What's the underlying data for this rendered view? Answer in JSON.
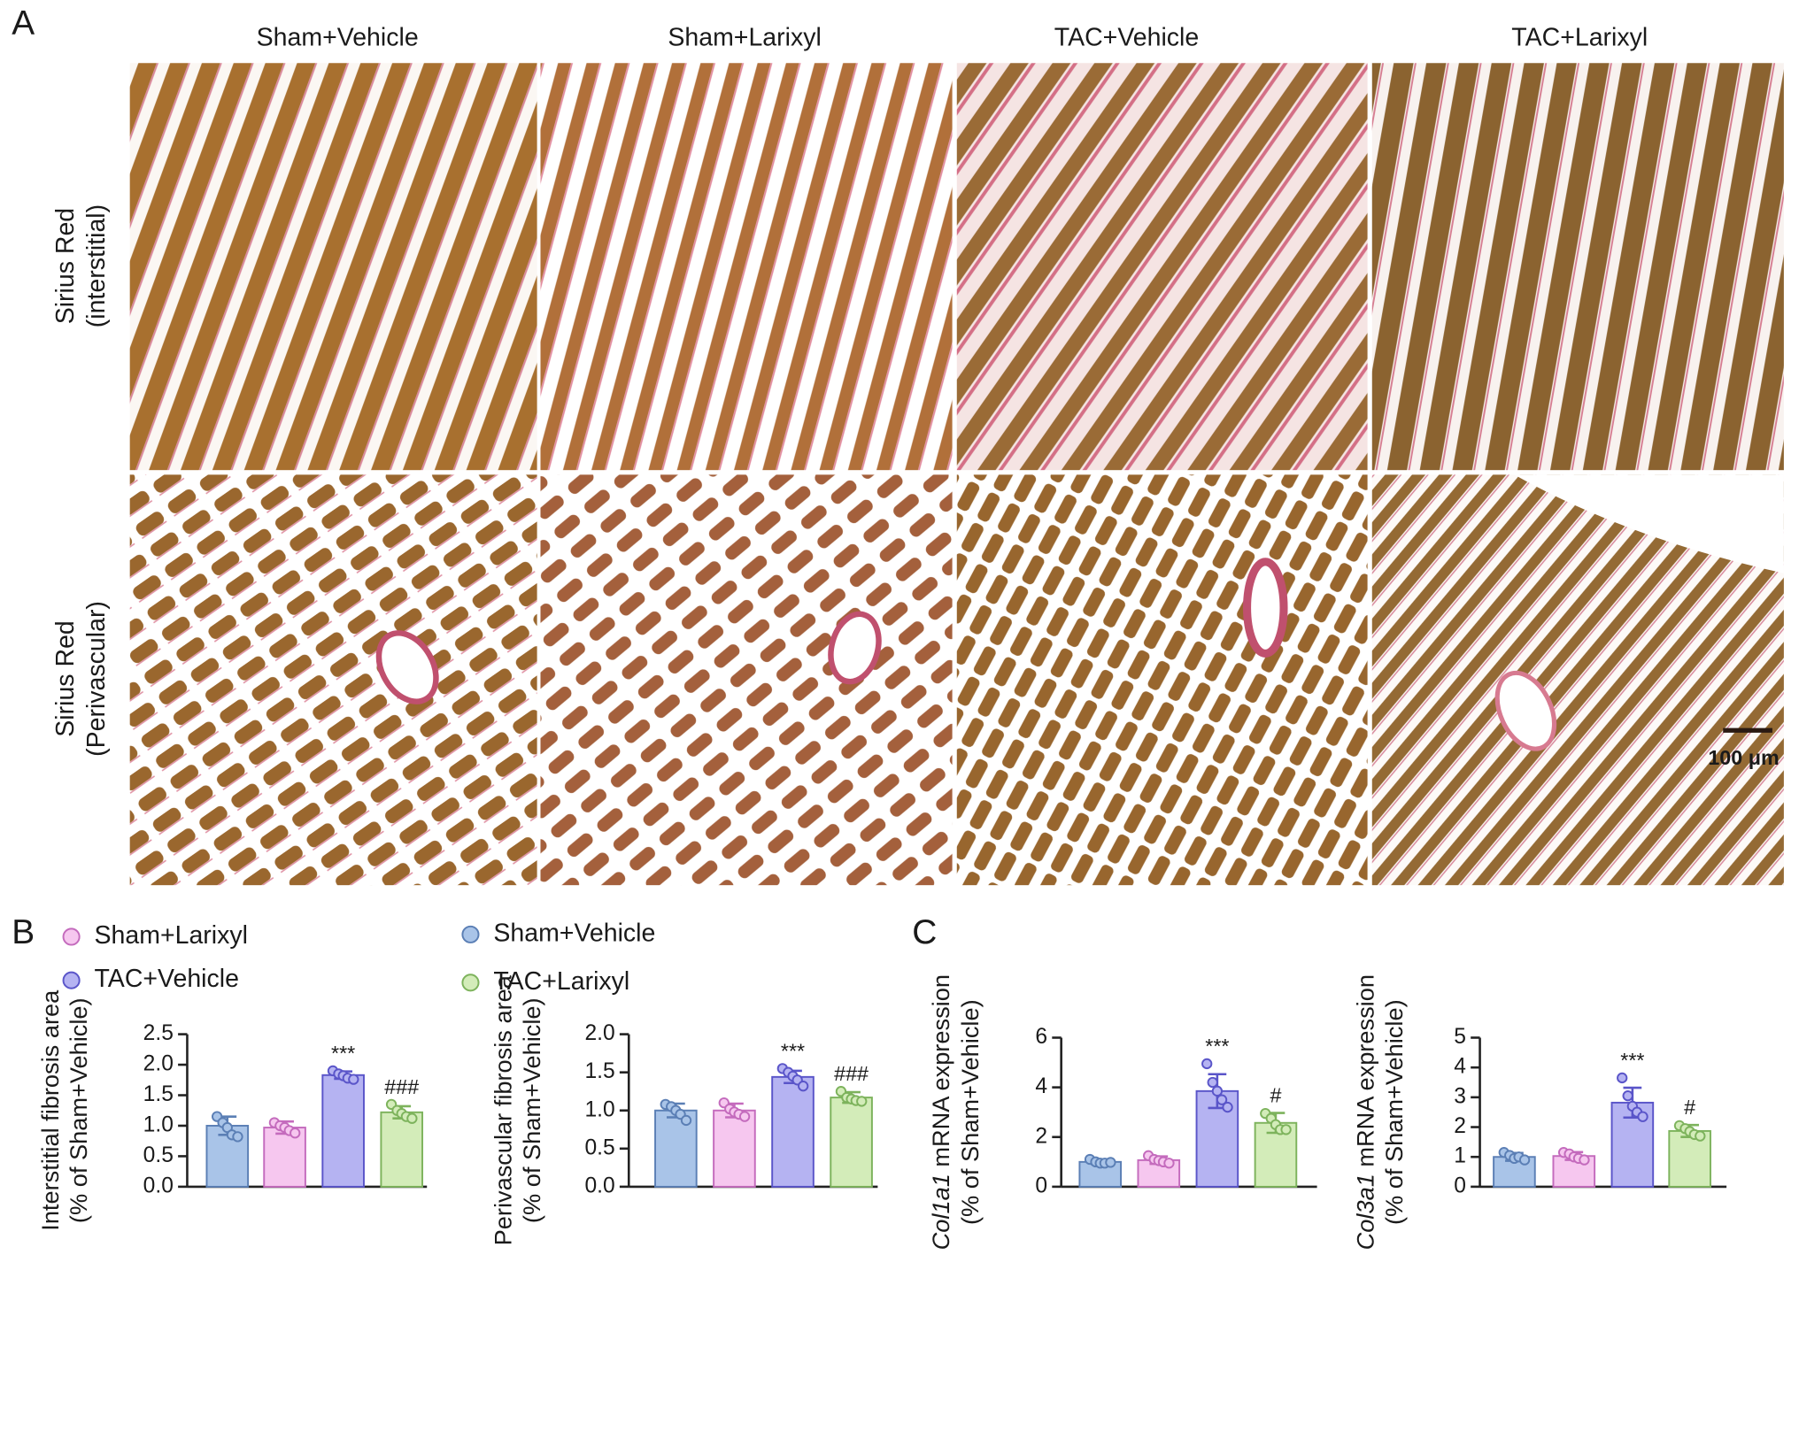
{
  "panel_labels": [
    "A",
    "B",
    "C"
  ],
  "panel_a": {
    "columns": [
      "Sham+Vehicle",
      "Sham+Larixyl",
      "TAC+Vehicle",
      "TAC+Larixyl"
    ],
    "rows": [
      [
        "Sirius Red",
        "(interstitial)"
      ],
      [
        "Sirius Red",
        "(Perivascular)"
      ]
    ],
    "scale_bar": "100 μm"
  },
  "groups": [
    {
      "name": "Sham+Vehicle",
      "color": "#a9c4e8",
      "edge": "#5b7fb5"
    },
    {
      "name": "Sham+Larixyl",
      "color": "#f6c7ef",
      "edge": "#c46bbd"
    },
    {
      "name": "TAC+Vehicle",
      "color": "#b5b3f2",
      "edge": "#5a55c9"
    },
    {
      "name": "TAC+Larixyl",
      "color": "#d3ecb9",
      "edge": "#7db35c"
    }
  ],
  "chart_data": [
    {
      "type": "bar",
      "ylabel": [
        "Interstitial fibrosis area",
        "(% of Sham+Vehicle)"
      ],
      "values": [
        1.0,
        0.97,
        1.83,
        1.22
      ],
      "errors": [
        0.15,
        0.1,
        0.06,
        0.1
      ],
      "points": [
        [
          1.15,
          1.05,
          0.97,
          0.85,
          0.82
        ],
        [
          1.05,
          1.0,
          0.97,
          0.92,
          0.88
        ],
        [
          1.9,
          1.85,
          1.82,
          1.78,
          1.76
        ],
        [
          1.35,
          1.25,
          1.2,
          1.15,
          1.12
        ]
      ],
      "annotations": [
        null,
        null,
        "***",
        "###"
      ],
      "ylim": [
        0,
        2.5
      ],
      "yticks": [
        {
          "value": 0,
          "label": "0.0"
        },
        0.5,
        {
          "value": 1,
          "label": "1.0"
        },
        1.5,
        {
          "value": 2,
          "label": "2.0"
        },
        2.5
      ]
    },
    {
      "type": "bar",
      "ylabel": [
        "Perivascular fibrosis area",
        "(% of Sham+Vehicle)"
      ],
      "values": [
        1.0,
        1.0,
        1.44,
        1.17
      ],
      "errors": [
        0.09,
        0.09,
        0.08,
        0.07
      ],
      "points": [
        [
          1.08,
          1.05,
          1.0,
          0.95,
          0.87
        ],
        [
          1.1,
          1.02,
          0.98,
          0.95,
          0.92
        ],
        [
          1.55,
          1.5,
          1.45,
          1.4,
          1.32
        ],
        [
          1.25,
          1.17,
          1.15,
          1.13,
          1.12
        ]
      ],
      "annotations": [
        null,
        null,
        "***",
        "###"
      ],
      "ylim": [
        0,
        2.0
      ],
      "yticks": [
        {
          "value": 0,
          "label": "0.0"
        },
        0.5,
        {
          "value": 1,
          "label": "1.0"
        },
        1.5,
        {
          "value": 2,
          "label": "2.0"
        }
      ]
    },
    {
      "type": "bar",
      "ylabel_gene": "Col1a1",
      "ylabel": [
        " mRNA expression",
        "(% of Sham+Vehicle)"
      ],
      "values": [
        1.0,
        1.07,
        3.85,
        2.57
      ],
      "errors": [
        0.1,
        0.15,
        0.68,
        0.4
      ],
      "points": [
        [
          1.1,
          1.0,
          0.95,
          0.95,
          0.98
        ],
        [
          1.25,
          1.1,
          1.05,
          1.0,
          0.95
        ],
        [
          4.95,
          4.2,
          3.85,
          3.5,
          3.2
        ],
        [
          2.95,
          2.75,
          2.5,
          2.3,
          2.3
        ]
      ],
      "annotations": [
        null,
        null,
        "***",
        "#"
      ],
      "ylim": [
        0,
        6
      ],
      "yticks": [
        0,
        2,
        4,
        6
      ]
    },
    {
      "type": "bar",
      "ylabel_gene": "Col3a1",
      "ylabel": [
        " mRNA expression",
        "(% of Sham+Vehicle)"
      ],
      "values": [
        1.0,
        1.03,
        2.82,
        1.87
      ],
      "errors": [
        0.13,
        0.13,
        0.5,
        0.2
      ],
      "points": [
        [
          1.15,
          1.05,
          0.95,
          1.0,
          0.9
        ],
        [
          1.15,
          1.1,
          1.0,
          0.95,
          0.9
        ],
        [
          3.65,
          3.05,
          2.7,
          2.5,
          2.35
        ],
        [
          2.05,
          1.95,
          1.85,
          1.75,
          1.7
        ]
      ],
      "annotations": [
        null,
        null,
        "***",
        "#"
      ],
      "ylim": [
        0,
        5
      ],
      "yticks": [
        0,
        1,
        2,
        3,
        4,
        5
      ]
    }
  ]
}
